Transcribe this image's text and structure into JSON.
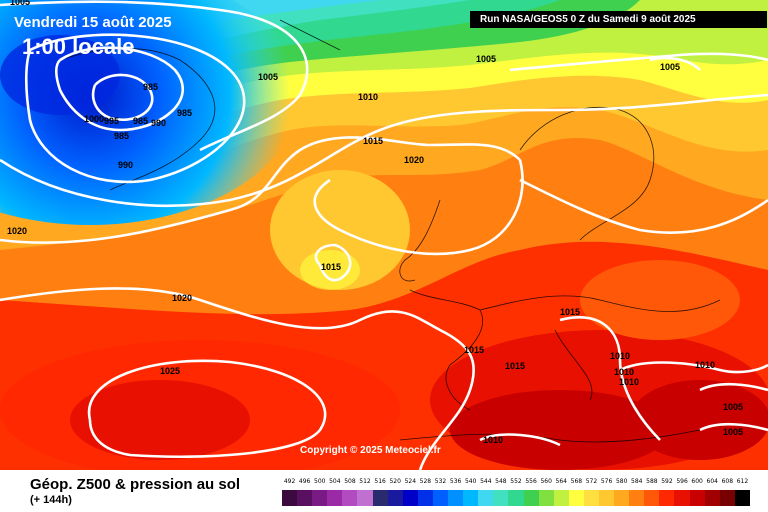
{
  "header": {
    "date": "Vendredi 15 août 2025",
    "time": "1:00 locale",
    "run": "Run NASA/GEOS5 0 Z du Samedi 9 août 2025"
  },
  "copyright": "Copyright © 2025 Meteociel.fr",
  "legend": {
    "title": "Géop. Z500 & pression au sol",
    "subtitle": "(+ 144h)",
    "scale": [
      {
        "v": "492",
        "c": "#3b0a3e"
      },
      {
        "v": "496",
        "c": "#5a1060"
      },
      {
        "v": "500",
        "c": "#7a1a85"
      },
      {
        "v": "504",
        "c": "#9a2aa5"
      },
      {
        "v": "508",
        "c": "#b24ac0"
      },
      {
        "v": "512",
        "c": "#c070d0"
      },
      {
        "v": "516",
        "c": "#2a2a6e"
      },
      {
        "v": "520",
        "c": "#1a1a9e"
      },
      {
        "v": "524",
        "c": "#0000c8"
      },
      {
        "v": "528",
        "c": "#0030e8"
      },
      {
        "v": "532",
        "c": "#0060ff"
      },
      {
        "v": "536",
        "c": "#0090ff"
      },
      {
        "v": "540",
        "c": "#00b8ff"
      },
      {
        "v": "544",
        "c": "#40d8f0"
      },
      {
        "v": "548",
        "c": "#40e0c0"
      },
      {
        "v": "552",
        "c": "#30d890"
      },
      {
        "v": "556",
        "c": "#40d050"
      },
      {
        "v": "560",
        "c": "#80e040"
      },
      {
        "v": "564",
        "c": "#c0f040"
      },
      {
        "v": "568",
        "c": "#ffff40"
      },
      {
        "v": "572",
        "c": "#ffe040"
      },
      {
        "v": "576",
        "c": "#ffc830"
      },
      {
        "v": "580",
        "c": "#ffa820"
      },
      {
        "v": "584",
        "c": "#ff8010"
      },
      {
        "v": "588",
        "c": "#ff5808"
      },
      {
        "v": "592",
        "c": "#ff2800"
      },
      {
        "v": "596",
        "c": "#e81000"
      },
      {
        "v": "600",
        "c": "#c80000"
      },
      {
        "v": "604",
        "c": "#a00000"
      },
      {
        "v": "608",
        "c": "#780000"
      },
      {
        "v": "612",
        "c": "#000000"
      }
    ]
  },
  "isobars": [
    "1005",
    "1005",
    "1005",
    "1005",
    "1010",
    "985",
    "985",
    "985",
    "985",
    "990",
    "995",
    "990",
    "1000",
    "1015",
    "1020",
    "1020",
    "1020",
    "1015",
    "1015",
    "1015",
    "1015",
    "1025",
    "1010",
    "1010",
    "1010",
    "1010",
    "1010",
    "1005",
    "1005"
  ]
}
